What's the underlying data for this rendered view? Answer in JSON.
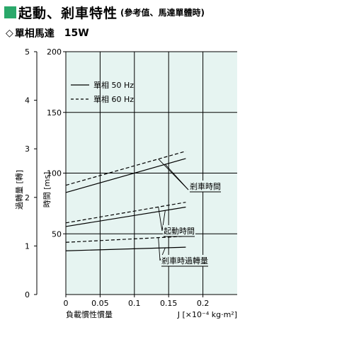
{
  "header": {
    "title": "起動、剎車特性",
    "subtitle": "(參考值、馬達單體時)"
  },
  "subheader": {
    "icon": "diamond-outline-icon",
    "motor_type": "單相馬達",
    "power": "15W"
  },
  "colors": {
    "accent": "#2aa86a",
    "plot_background": "#e6f4f1"
  },
  "chart_data": {
    "type": "line",
    "title": "",
    "xlabel": "負載慣性慣量",
    "xunit_label": "J [×10⁻⁴ kg·m²]",
    "ylabel_left": "過轉量 [轉]",
    "ylabel_right": "時間 [ms]",
    "xlim": [
      0,
      0.25
    ],
    "ylim_time": [
      0,
      200
    ],
    "ylim_overrun": [
      0,
      5
    ],
    "x_ticks": [
      "0",
      "0.05",
      "0.1",
      "0.15",
      "0.2"
    ],
    "x_tick_values": [
      0,
      0.05,
      0.1,
      0.15,
      0.2
    ],
    "y_ticks_time": [
      "200",
      "150",
      "100",
      "50"
    ],
    "y_tick_values_time": [
      200,
      150,
      100,
      50
    ],
    "y_ticks_overrun": [
      "5",
      "4",
      "3",
      "2",
      "1",
      "0"
    ],
    "y_tick_values_overrun": [
      5,
      4,
      3,
      2,
      1,
      0
    ],
    "grid": true,
    "legend": {
      "position": "top-left",
      "entries": [
        {
          "label": "單相  50 Hz",
          "style": "solid"
        },
        {
          "label": "單相  60 Hz",
          "style": "dashed"
        }
      ]
    },
    "series": [
      {
        "group": "剎車時間",
        "freq": "50 Hz",
        "style": "solid",
        "x": [
          0,
          0.175
        ],
        "y": [
          84,
          112
        ]
      },
      {
        "group": "剎車時間",
        "freq": "60 Hz",
        "style": "dashed",
        "x": [
          0,
          0.175
        ],
        "y": [
          90,
          118
        ]
      },
      {
        "group": "起動時間",
        "freq": "50 Hz",
        "style": "solid",
        "x": [
          0,
          0.175
        ],
        "y": [
          56,
          72
        ]
      },
      {
        "group": "起動時間",
        "freq": "60 Hz",
        "style": "dashed",
        "x": [
          0,
          0.175
        ],
        "y": [
          59,
          76
        ]
      },
      {
        "group": "剎車時過轉量",
        "freq": "50 Hz",
        "style": "solid",
        "x": [
          0,
          0.175
        ],
        "y": [
          36,
          39
        ]
      },
      {
        "group": "剎車時過轉量",
        "freq": "60 Hz",
        "style": "dashed",
        "x": [
          0,
          0.175
        ],
        "y": [
          43,
          48
        ]
      }
    ],
    "annotations": [
      {
        "text": "剎車時間",
        "series_group": "剎車時間"
      },
      {
        "text": "起動時間",
        "series_group": "起動時間"
      },
      {
        "text": "剎車時過轉量",
        "series_group": "剎車時過轉量"
      }
    ]
  }
}
